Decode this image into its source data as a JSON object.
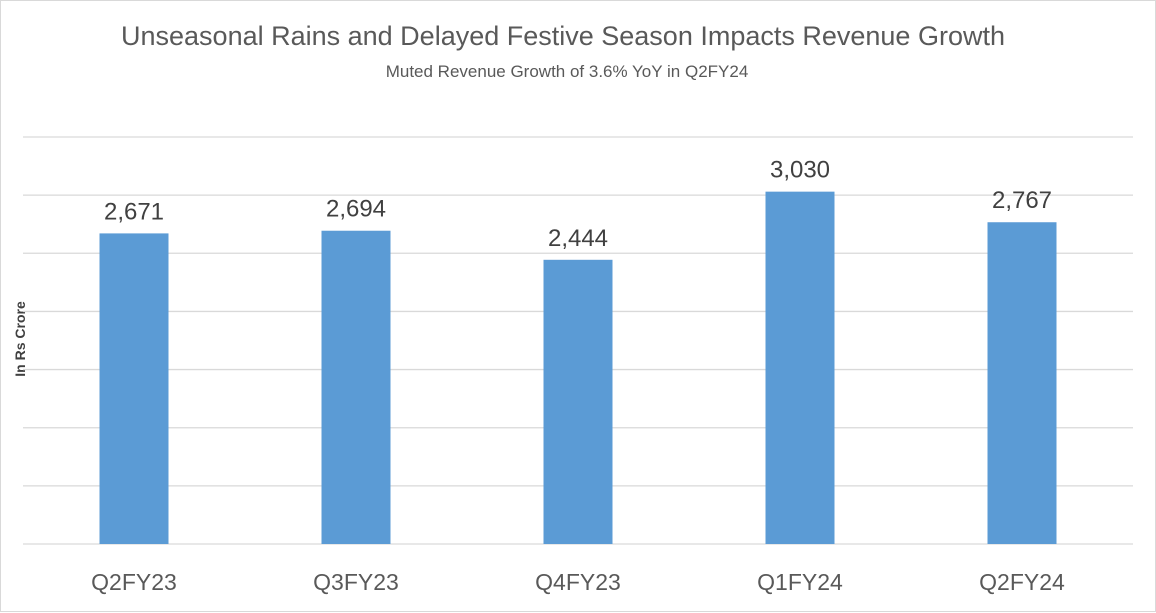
{
  "chart_data": {
    "type": "bar",
    "title": "Unseasonal Rains and Delayed Festive Season Impacts Revenue Growth",
    "subtitle": "Muted Revenue Growth of 3.6% YoY in Q2FY24",
    "ylabel": "In Rs Crore",
    "xlabel": "",
    "categories": [
      "Q2FY23",
      "Q3FY23",
      "Q4FY23",
      "Q1FY24",
      "Q2FY24"
    ],
    "values": [
      2671,
      2694,
      2444,
      3030,
      2767
    ],
    "data_labels": [
      "2,671",
      "2,694",
      "2,444",
      "3,030",
      "2,767"
    ],
    "ylim": [
      0,
      3500
    ],
    "ytick_step": 500,
    "grid": true,
    "legend": "none",
    "bar_color": "#5b9bd5",
    "grid_color": "#d9d9d9"
  }
}
